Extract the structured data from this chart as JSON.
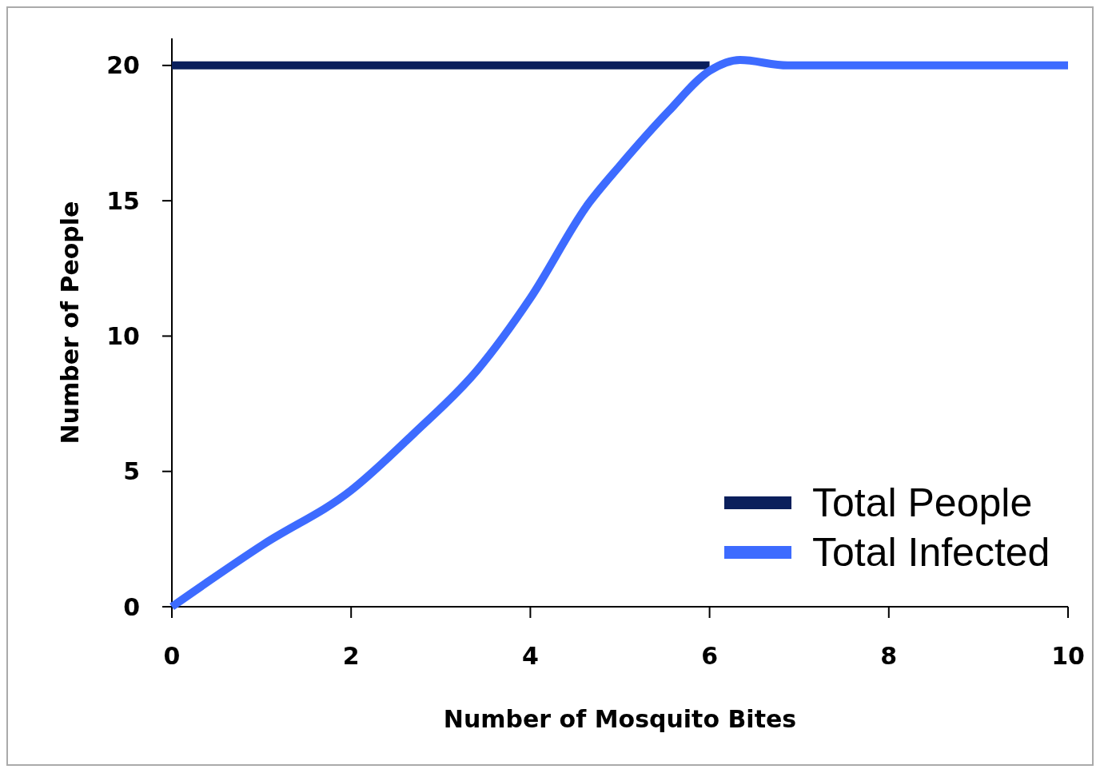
{
  "chart_data": {
    "type": "line",
    "xlabel": "Number of Mosquito Bites",
    "ylabel": "Number of People",
    "xlim": [
      0,
      10
    ],
    "xticks": [
      0,
      2,
      4,
      6,
      8,
      10
    ],
    "ylim": [
      0,
      21
    ],
    "yticks": [
      0,
      5,
      10,
      15,
      20
    ],
    "grid": false,
    "legend": "bottom right",
    "line_style": "solid",
    "series": [
      {
        "name": "Total People",
        "color": "#0a1f5c",
        "x": [
          0,
          6
        ],
        "values": [
          20,
          20
        ]
      },
      {
        "name": "Total Infected",
        "color": "#3d6bff",
        "x": [
          0,
          1.02,
          2,
          2.7,
          3.41,
          4,
          4.65,
          5,
          5.54,
          6,
          6.34,
          6.87,
          8,
          10
        ],
        "values": [
          0,
          2.3,
          4.3,
          6.4,
          8.75,
          11.4,
          14.9,
          16.3,
          18.3,
          19.8,
          20.2,
          20,
          20,
          20
        ]
      }
    ]
  }
}
